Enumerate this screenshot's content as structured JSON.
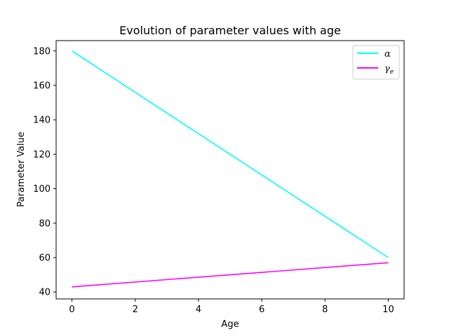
{
  "chart_data": {
    "type": "line",
    "title": "Evolution of parameter values with age",
    "xlabel": "Age",
    "ylabel": "Parameter Value",
    "xlim": [
      -0.5,
      10.5
    ],
    "ylim": [
      36,
      186
    ],
    "xticks": [
      0,
      2,
      4,
      6,
      8,
      10
    ],
    "yticks": [
      40,
      60,
      80,
      100,
      120,
      140,
      160,
      180
    ],
    "grid": false,
    "legend_position": "top-right",
    "series": [
      {
        "name": "α",
        "color": "#00ffff",
        "x": [
          0,
          10
        ],
        "y": [
          180,
          60
        ]
      },
      {
        "name": "γ",
        "subscript": "e",
        "color": "#ff00ff",
        "x": [
          0,
          10
        ],
        "y": [
          43,
          57
        ]
      }
    ]
  }
}
